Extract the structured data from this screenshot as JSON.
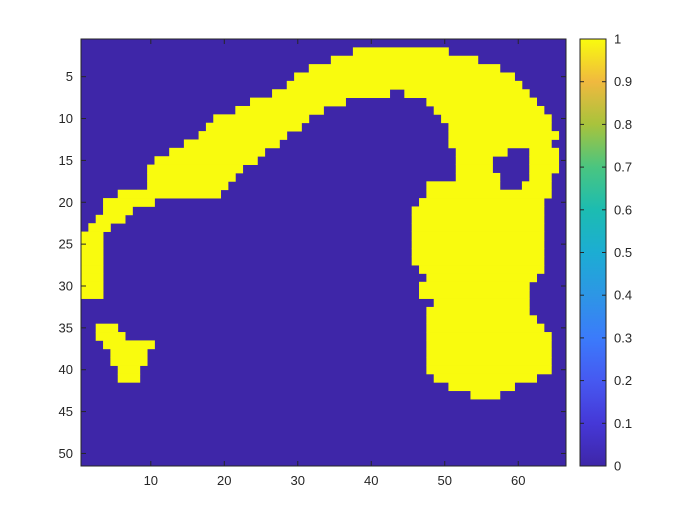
{
  "chart_data": {
    "type": "heatmap",
    "title": "",
    "xlabel": "",
    "ylabel": "",
    "xlim": [
      0.5,
      66.5
    ],
    "ylim": [
      51.5,
      0.5
    ],
    "x_ticks": [
      10,
      20,
      30,
      40,
      50,
      60
    ],
    "y_ticks": [
      5,
      10,
      15,
      20,
      25,
      30,
      35,
      40,
      45,
      50
    ],
    "colorbar": {
      "colormap": "parula",
      "range": [
        0,
        1
      ],
      "ticks": [
        0,
        0.1,
        0.2,
        0.3,
        0.4,
        0.5,
        0.6,
        0.7,
        0.8,
        0.9,
        1
      ],
      "tick_labels": [
        "0",
        "0.1",
        "0.2",
        "0.3",
        "0.4",
        "0.5",
        "0.6",
        "0.7",
        "0.8",
        "0.9",
        "1"
      ]
    },
    "grid": false,
    "low_color": "#3e26a8",
    "high_color": "#f9fb0e",
    "rows": 51,
    "cols": 66,
    "value_one_runs": [
      [
        2,
        [
          [
            38,
            50
          ]
        ]
      ],
      [
        3,
        [
          [
            35,
            54
          ]
        ]
      ],
      [
        4,
        [
          [
            32,
            57
          ]
        ]
      ],
      [
        5,
        [
          [
            30,
            59
          ]
        ]
      ],
      [
        6,
        [
          [
            29,
            60
          ]
        ]
      ],
      [
        7,
        [
          [
            27,
            42
          ],
          [
            45,
            61
          ]
        ]
      ],
      [
        8,
        [
          [
            24,
            36
          ],
          [
            48,
            62
          ]
        ]
      ],
      [
        9,
        [
          [
            22,
            33
          ],
          [
            49,
            63
          ]
        ]
      ],
      [
        10,
        [
          [
            19,
            31
          ],
          [
            50,
            64
          ]
        ]
      ],
      [
        11,
        [
          [
            18,
            30
          ],
          [
            51,
            64
          ]
        ]
      ],
      [
        12,
        [
          [
            17,
            28
          ],
          [
            51,
            65
          ]
        ]
      ],
      [
        13,
        [
          [
            15,
            27
          ],
          [
            51,
            64
          ]
        ]
      ],
      [
        14,
        [
          [
            13,
            25
          ],
          [
            52,
            58
          ],
          [
            62,
            65
          ]
        ]
      ],
      [
        15,
        [
          [
            11,
            24
          ],
          [
            52,
            56
          ],
          [
            62,
            65
          ]
        ]
      ],
      [
        16,
        [
          [
            10,
            22
          ],
          [
            52,
            56
          ],
          [
            62,
            65
          ]
        ]
      ],
      [
        17,
        [
          [
            10,
            21
          ],
          [
            52,
            57
          ],
          [
            62,
            64
          ]
        ]
      ],
      [
        18,
        [
          [
            10,
            20
          ],
          [
            48,
            57
          ],
          [
            61,
            64
          ]
        ]
      ],
      [
        19,
        [
          [
            6,
            19
          ],
          [
            48,
            64
          ]
        ]
      ],
      [
        20,
        [
          [
            4,
            10
          ],
          [
            47,
            63
          ]
        ]
      ],
      [
        21,
        [
          [
            4,
            7
          ],
          [
            46,
            63
          ]
        ]
      ],
      [
        22,
        [
          [
            3,
            6
          ],
          [
            46,
            63
          ]
        ]
      ],
      [
        23,
        [
          [
            2,
            4
          ],
          [
            46,
            63
          ]
        ]
      ],
      [
        24,
        [
          [
            1,
            3
          ],
          [
            46,
            63
          ]
        ]
      ],
      [
        25,
        [
          [
            1,
            3
          ],
          [
            46,
            63
          ]
        ]
      ],
      [
        26,
        [
          [
            1,
            3
          ],
          [
            46,
            63
          ]
        ]
      ],
      [
        27,
        [
          [
            1,
            3
          ],
          [
            46,
            63
          ]
        ]
      ],
      [
        28,
        [
          [
            1,
            3
          ],
          [
            47,
            63
          ]
        ]
      ],
      [
        29,
        [
          [
            1,
            3
          ],
          [
            48,
            62
          ]
        ]
      ],
      [
        30,
        [
          [
            1,
            3
          ],
          [
            47,
            61
          ]
        ]
      ],
      [
        31,
        [
          [
            1,
            3
          ],
          [
            47,
            61
          ]
        ]
      ],
      [
        32,
        [
          [
            49,
            61
          ]
        ]
      ],
      [
        33,
        [
          [
            48,
            61
          ]
        ]
      ],
      [
        34,
        [
          [
            48,
            62
          ]
        ]
      ],
      [
        35,
        [
          [
            3,
            5
          ],
          [
            48,
            63
          ]
        ]
      ],
      [
        36,
        [
          [
            3,
            6
          ],
          [
            48,
            64
          ]
        ]
      ],
      [
        37,
        [
          [
            4,
            10
          ],
          [
            48,
            64
          ]
        ]
      ],
      [
        38,
        [
          [
            5,
            9
          ],
          [
            48,
            64
          ]
        ]
      ],
      [
        39,
        [
          [
            5,
            9
          ],
          [
            48,
            64
          ]
        ]
      ],
      [
        40,
        [
          [
            6,
            8
          ],
          [
            48,
            64
          ]
        ]
      ],
      [
        41,
        [
          [
            6,
            8
          ],
          [
            49,
            62
          ]
        ]
      ],
      [
        42,
        [
          [
            51,
            59
          ]
        ]
      ],
      [
        43,
        [
          [
            54,
            57
          ]
        ]
      ]
    ]
  }
}
